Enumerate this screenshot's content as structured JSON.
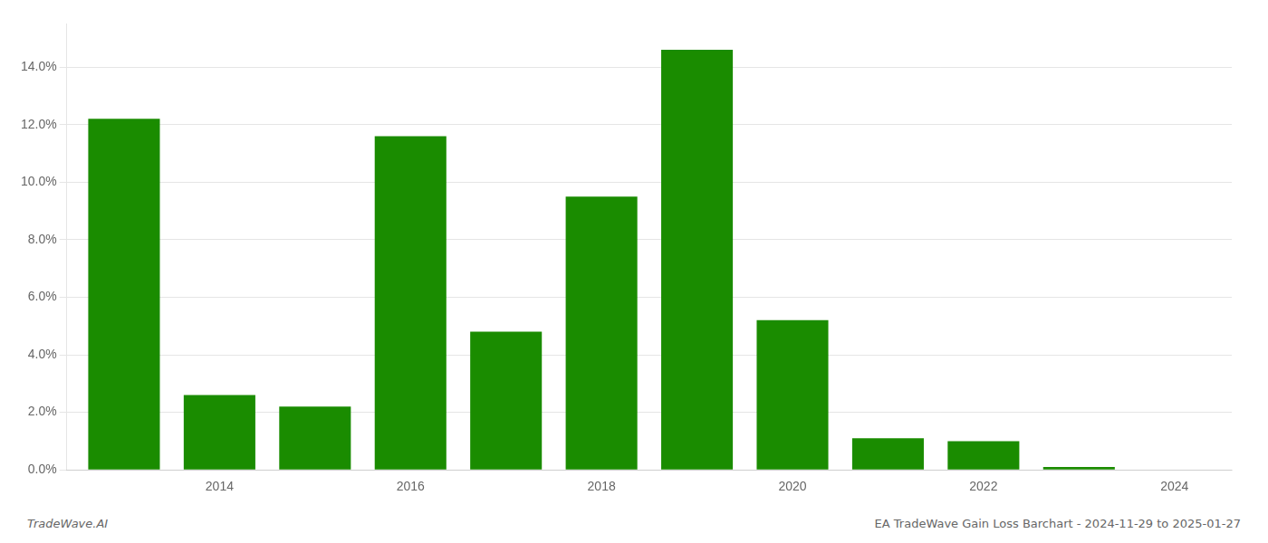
{
  "chart_data": {
    "type": "bar",
    "x": [
      2013,
      2014,
      2015,
      2016,
      2017,
      2018,
      2019,
      2020,
      2021,
      2022,
      2023
    ],
    "values": [
      0.122,
      0.026,
      0.022,
      0.116,
      0.048,
      0.095,
      0.146,
      0.052,
      0.011,
      0.01,
      0.001
    ],
    "color": "#1a8c00",
    "xlim": [
      2012.4,
      2024.6
    ],
    "xticks": [
      2014,
      2016,
      2018,
      2020,
      2022,
      2024
    ],
    "ylim": [
      0,
      0.155
    ],
    "yticks": [
      {
        "value": 0.0,
        "label": "0.0%"
      },
      {
        "value": 0.02,
        "label": "2.0%"
      },
      {
        "value": 0.04,
        "label": "4.0%"
      },
      {
        "value": 0.06,
        "label": "6.0%"
      },
      {
        "value": 0.08,
        "label": "8.0%"
      },
      {
        "value": 0.1,
        "label": "10.0%"
      },
      {
        "value": 0.12,
        "label": "12.0%"
      },
      {
        "value": 0.14,
        "label": "14.0%"
      }
    ],
    "grid": "y",
    "annotations": [
      "TradeWave.AI",
      "EA TradeWave Gain Loss Barchart - 2024-11-29 to 2025-01-27"
    ]
  }
}
